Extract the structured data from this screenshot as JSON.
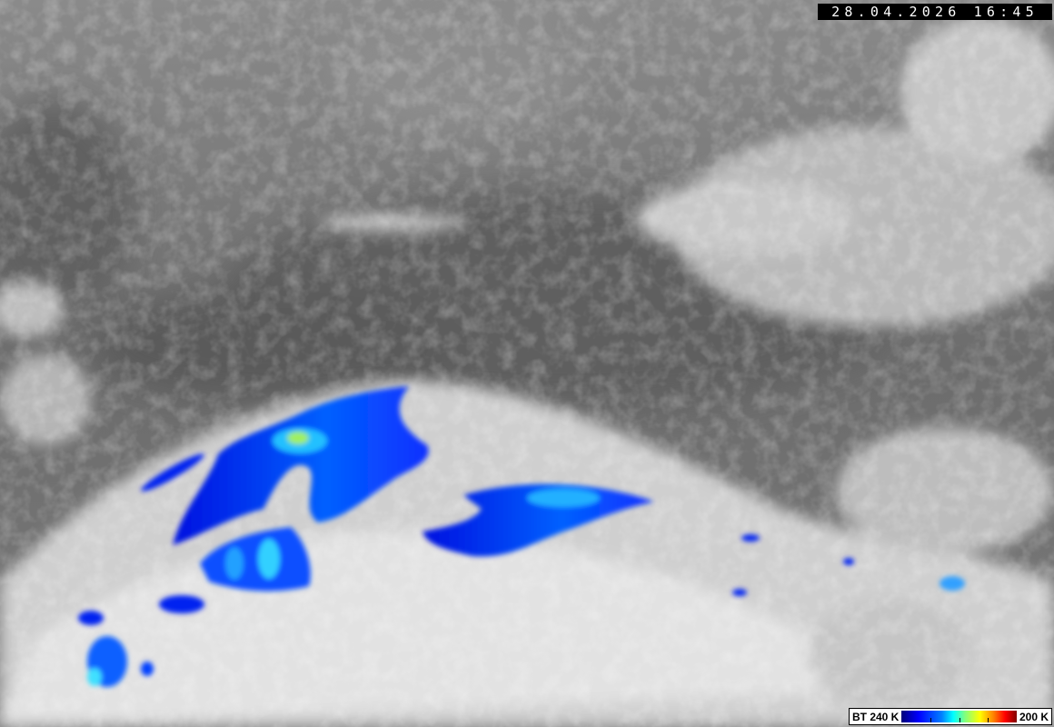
{
  "timestamp": "28.04.2026 16:45",
  "legend": {
    "left_label": "BT 240 K",
    "right_label": "200 K",
    "colors": [
      "#00007a",
      "#0000ff",
      "#00ffff",
      "#ffff00",
      "#ff0000",
      "#800000"
    ]
  }
}
